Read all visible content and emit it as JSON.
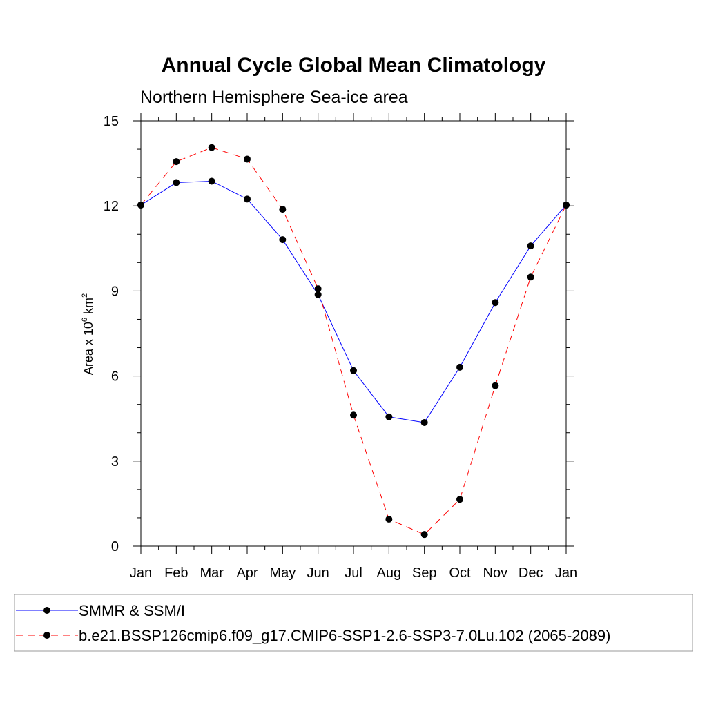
{
  "chart_data": {
    "type": "line",
    "title": "Annual Cycle Global Mean Climatology",
    "subtitle": "Northern Hemisphere Sea-ice area",
    "ylabel": {
      "prefix": "Area x 10",
      "exp1": "6",
      "mid": " km",
      "exp2": "2"
    },
    "xlabel": "",
    "categories": [
      "Jan",
      "Feb",
      "Mar",
      "Apr",
      "May",
      "Jun",
      "Jul",
      "Aug",
      "Sep",
      "Oct",
      "Nov",
      "Dec",
      "Jan"
    ],
    "ylim": [
      0,
      15
    ],
    "yticks": [
      "0",
      "3",
      "6",
      "9",
      "12",
      "15"
    ],
    "series": [
      {
        "name": "SMMR & SSM/I",
        "color": "#0000ff",
        "dash": "solid",
        "marker": "filled-circle",
        "values": [
          12.03,
          12.82,
          12.87,
          12.24,
          10.81,
          8.87,
          6.19,
          4.56,
          4.36,
          6.31,
          8.59,
          10.59,
          12.03
        ]
      },
      {
        "name": "b.e21.BSSP126cmip6.f09_g17.CMIP6-SSP1-2.6-SSP3-7.0Lu.102 (2065-2089)",
        "color": "#ff0000",
        "dash": "dashed",
        "marker": "filled-circle",
        "values": [
          12.03,
          13.56,
          14.06,
          13.65,
          11.88,
          9.08,
          4.62,
          0.95,
          0.41,
          1.65,
          5.66,
          9.49,
          12.03
        ]
      }
    ],
    "legend_position": "bottom"
  }
}
